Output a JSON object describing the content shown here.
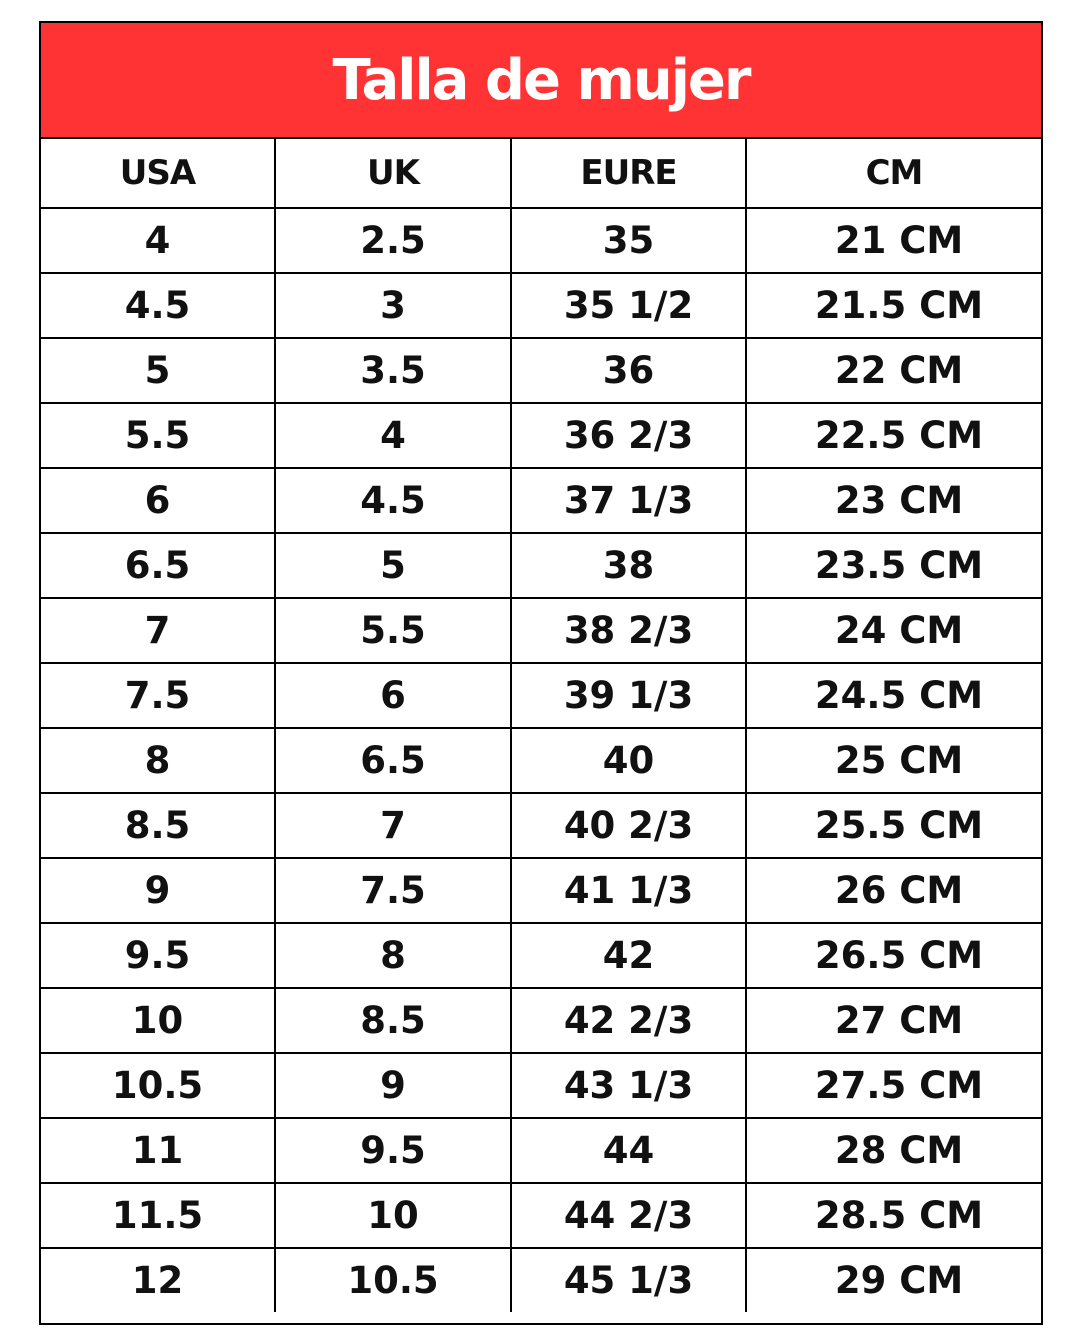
{
  "title": "Talla de mujer",
  "colors": {
    "title_background": "#ff3333",
    "title_text": "#ffffff",
    "grid_lines": "#000000",
    "cell_text": "#111111"
  },
  "headers": [
    "USA",
    "UK",
    "EURE",
    "CM"
  ],
  "rows": [
    [
      "4",
      "2.5",
      "35",
      "21 CM"
    ],
    [
      "4.5",
      "3",
      "35 1/2",
      "21.5 CM"
    ],
    [
      "5",
      "3.5",
      "36",
      "22 CM"
    ],
    [
      "5.5",
      "4",
      "36 2/3",
      "22.5 CM"
    ],
    [
      "6",
      "4.5",
      "37 1/3",
      "23 CM"
    ],
    [
      "6.5",
      "5",
      "38",
      "23.5 CM"
    ],
    [
      "7",
      "5.5",
      "38 2/3",
      "24 CM"
    ],
    [
      "7.5",
      "6",
      "39 1/3",
      "24.5 CM"
    ],
    [
      "8",
      "6.5",
      "40",
      "25 CM"
    ],
    [
      "8.5",
      "7",
      "40 2/3",
      "25.5 CM"
    ],
    [
      "9",
      "7.5",
      "41 1/3",
      "26 CM"
    ],
    [
      "9.5",
      "8",
      "42",
      "26.5 CM"
    ],
    [
      "10",
      "8.5",
      "42 2/3",
      "27 CM"
    ],
    [
      "10.5",
      "9",
      "43 1/3",
      "27.5 CM"
    ],
    [
      "11",
      "9.5",
      "44",
      "28 CM"
    ],
    [
      "11.5",
      "10",
      "44 2/3",
      "28.5 CM"
    ],
    [
      "12",
      "10.5",
      "45 1/3",
      "29 CM"
    ]
  ]
}
